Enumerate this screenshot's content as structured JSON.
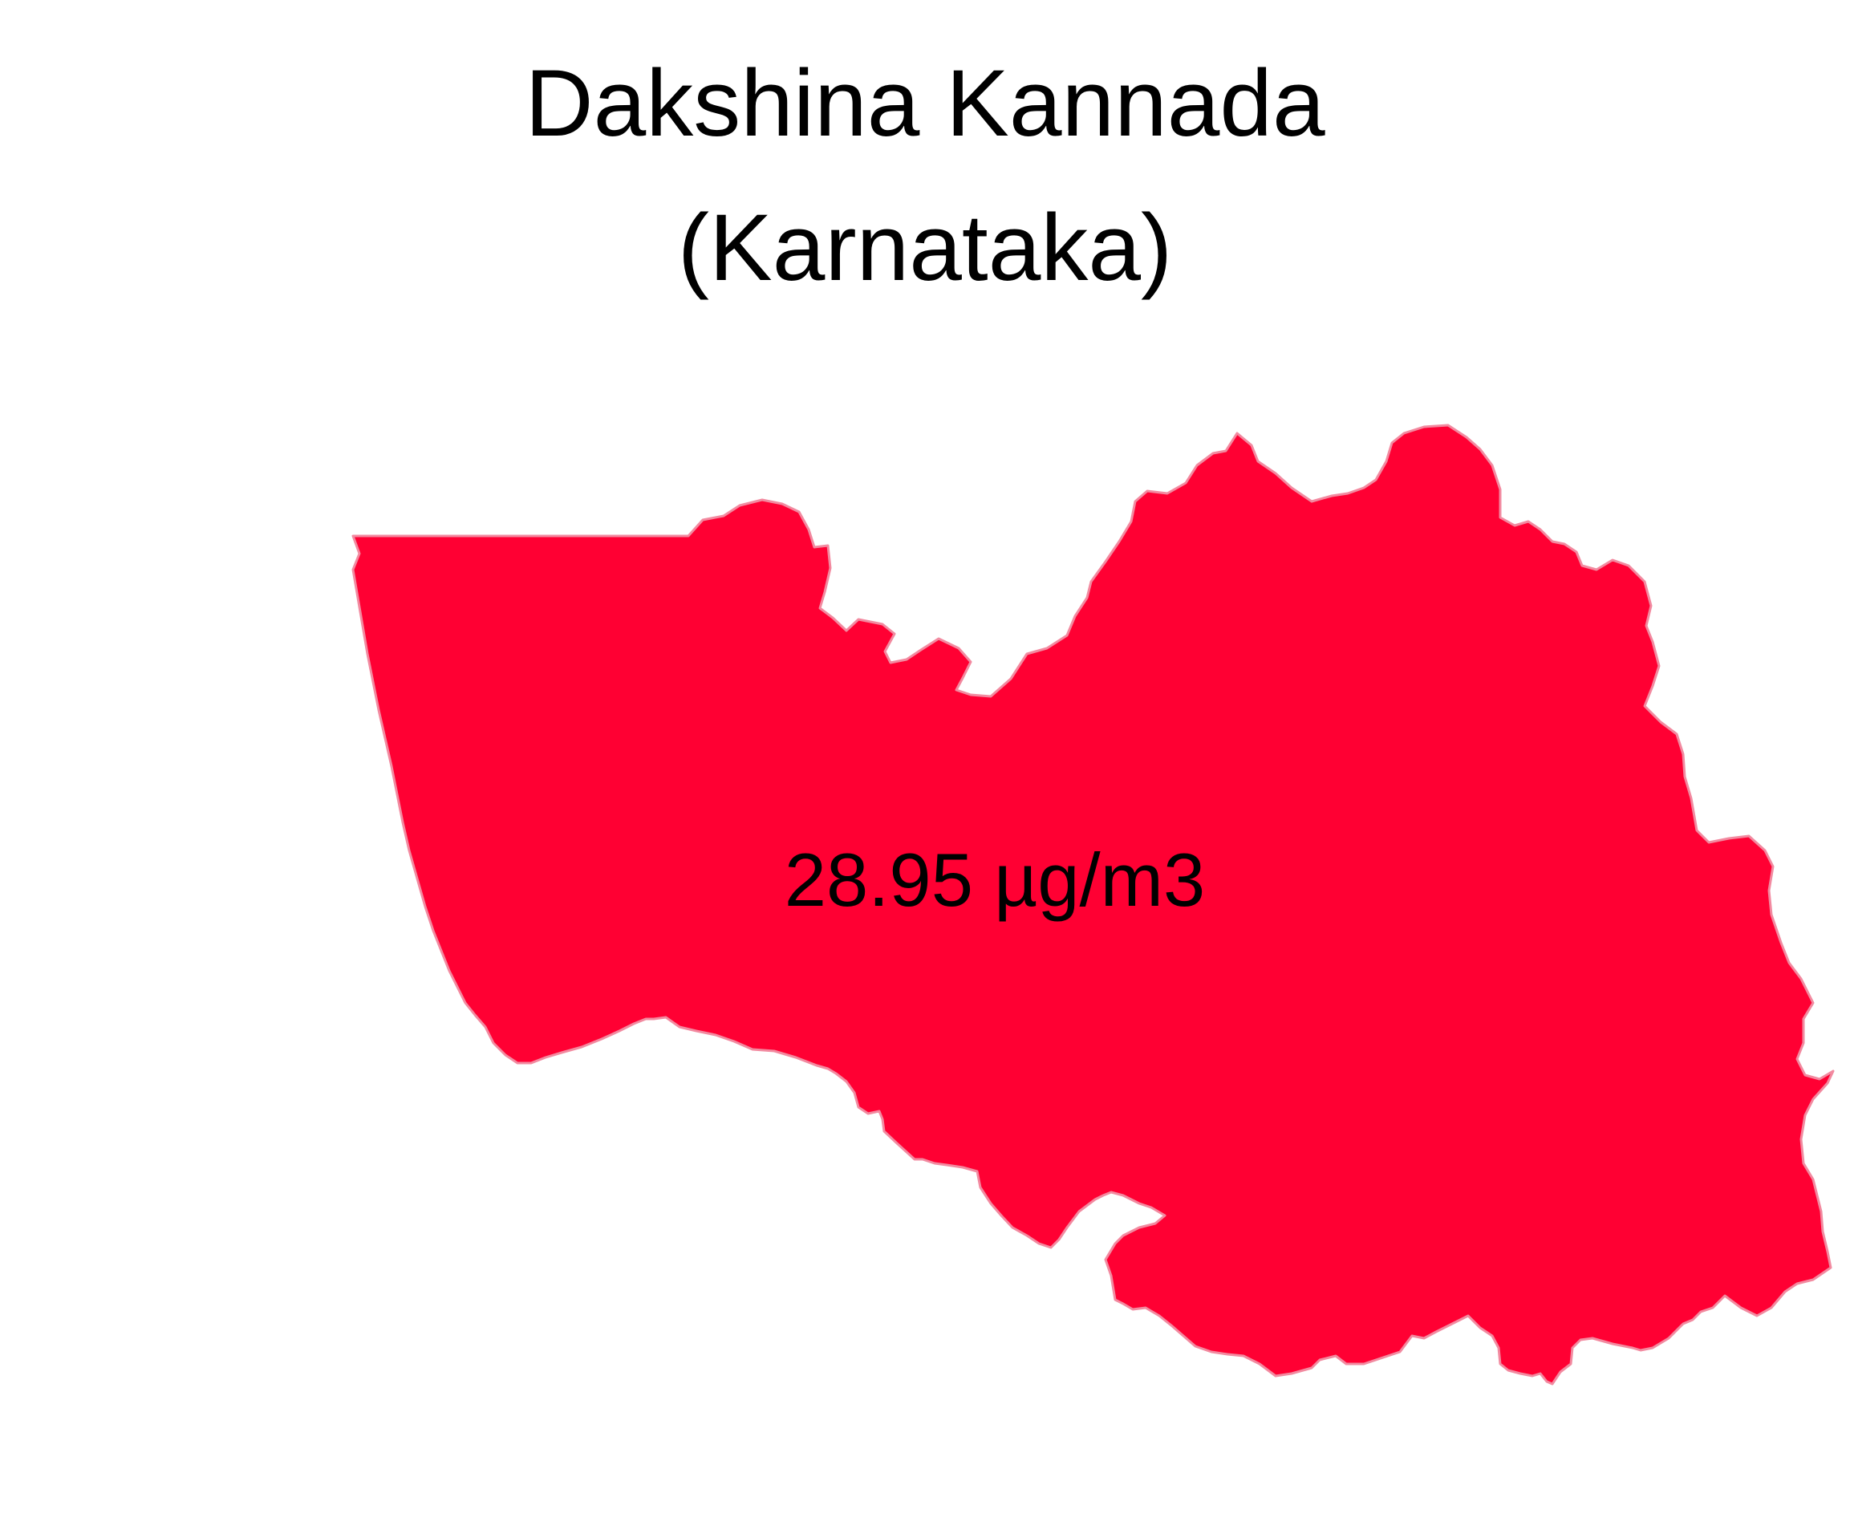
{
  "title": {
    "line1": "Dakshina Kannada",
    "line2": "(Karnataka)"
  },
  "region": {
    "district": "Dakshina Kannada",
    "state": "Karnataka",
    "value_label": "28.95 µg/m3",
    "value": 28.95,
    "unit": "µg/m3",
    "fill_color": "#ff0033",
    "border_color": "#f28aa0"
  }
}
